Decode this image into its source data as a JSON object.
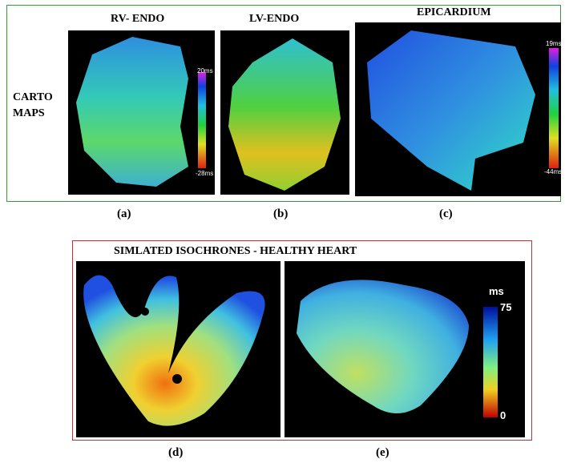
{
  "carto": {
    "side_label": [
      "CARTO",
      "MAPS"
    ],
    "panels": [
      {
        "title": "RV- ENDO",
        "scale_max": "20ms",
        "scale_min": "-28ms",
        "caption": "(a)"
      },
      {
        "title": "LV-ENDO",
        "caption": "(b)"
      },
      {
        "title": "EPICARDIUM",
        "scale_max": "19ms",
        "scale_min": "-44ms",
        "caption": "(c)"
      }
    ]
  },
  "simulation": {
    "title": "SIMLATED ISOCHRONES - HEALTHY HEART",
    "colorbar": {
      "unit": "ms",
      "max": "75",
      "min": "0"
    },
    "panels": [
      {
        "caption": "(d)"
      },
      {
        "caption": "(e)"
      }
    ]
  }
}
